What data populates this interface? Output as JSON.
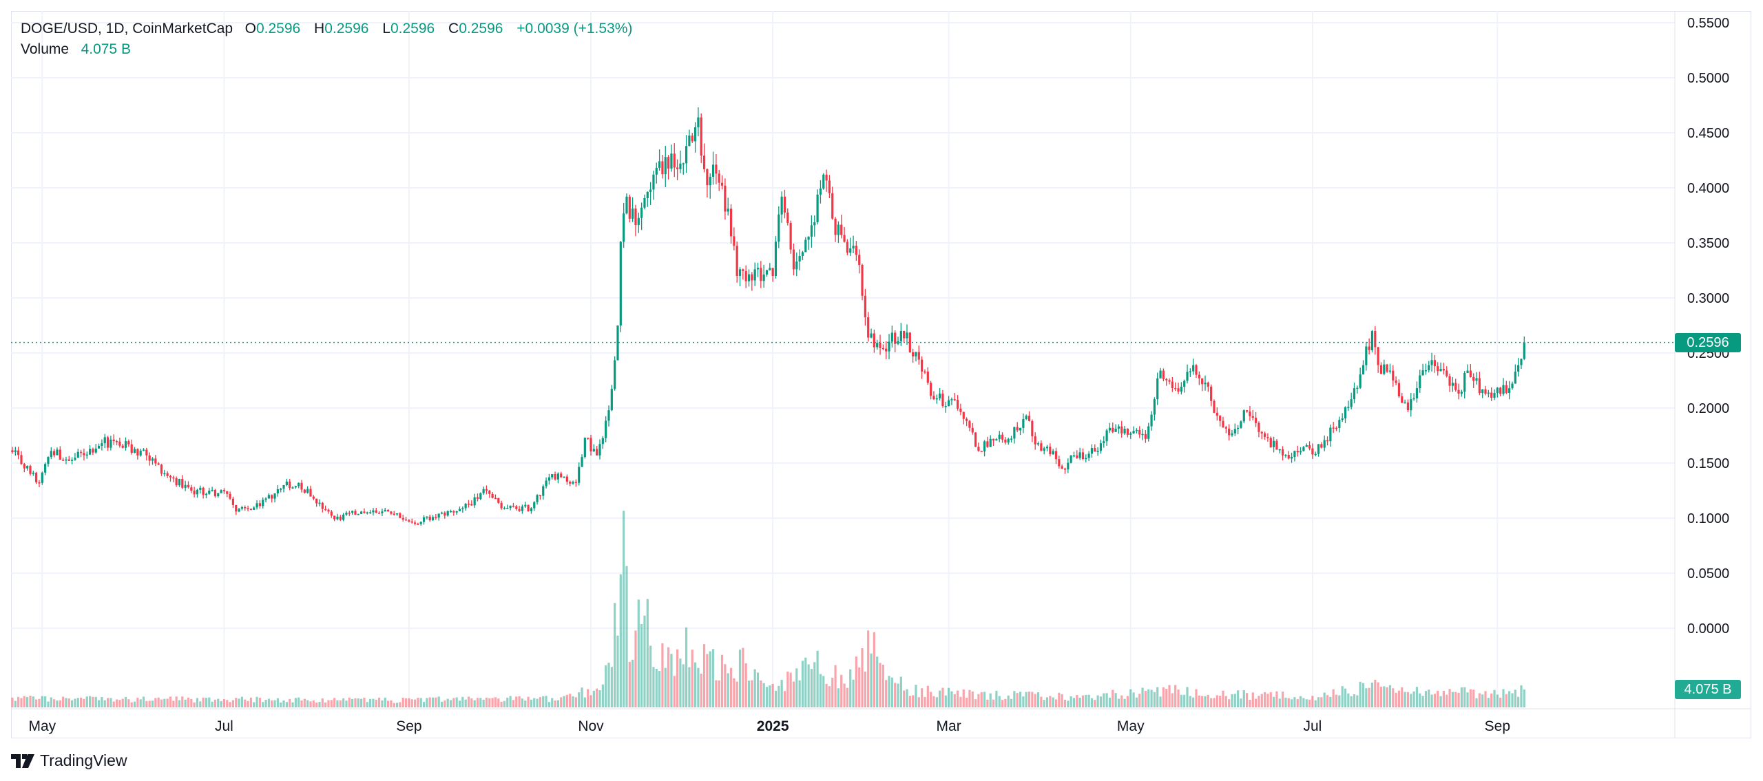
{
  "header": {
    "symbol": "DOGE/USD, 1D, CoinMarketCap",
    "o_label": "O",
    "o_value": "0.2596",
    "h_label": "H",
    "h_value": "0.2596",
    "l_label": "L",
    "l_value": "0.2596",
    "c_label": "C",
    "c_value": "0.2596",
    "change": "+0.0039 (+1.53%)",
    "volume_label": "Volume",
    "volume_value": "4.075 B"
  },
  "price_tag": "0.2596",
  "volume_tag": "4.075 B",
  "branding": "TradingView",
  "colors": {
    "up": "#089981",
    "down": "#f23645",
    "grid": "#f0f3fa",
    "tag": "#089981",
    "volume_tag": "#22ab94"
  },
  "chart_data": {
    "type": "candlestick",
    "title": "DOGE/USD, 1D, CoinMarketCap",
    "start_date": "2024-04-21",
    "candle_count": 508,
    "ylim": [
      0,
      0.55
    ],
    "y_ticks": [
      "0.5500",
      "0.5000",
      "0.4500",
      "0.4000",
      "0.3500",
      "0.3000",
      "0.2500",
      "0.2000",
      "0.1500",
      "0.1000",
      "0.0500",
      "0.0000"
    ],
    "y_tick_values": [
      0.55,
      0.5,
      0.45,
      0.4,
      0.35,
      0.3,
      0.25,
      0.2,
      0.15,
      0.1,
      0.05,
      0
    ],
    "x_ticks": [
      {
        "label": "May",
        "day": 10
      },
      {
        "label": "Jul",
        "day": 71
      },
      {
        "label": "Sep",
        "day": 133
      },
      {
        "label": "Nov",
        "day": 194
      },
      {
        "label": "2025",
        "day": 255
      },
      {
        "label": "Mar",
        "day": 314
      },
      {
        "label": "May",
        "day": 375
      },
      {
        "label": "Jul",
        "day": 436
      },
      {
        "label": "Sep",
        "day": 498
      }
    ],
    "last_price": 0.2596,
    "close_keyframes": [
      [
        0,
        0.16
      ],
      [
        9,
        0.132
      ],
      [
        13,
        0.161
      ],
      [
        19,
        0.152
      ],
      [
        30,
        0.168
      ],
      [
        34,
        0.17
      ],
      [
        45,
        0.157
      ],
      [
        53,
        0.137
      ],
      [
        60,
        0.125
      ],
      [
        72,
        0.122
      ],
      [
        75,
        0.106
      ],
      [
        83,
        0.111
      ],
      [
        91,
        0.13
      ],
      [
        96,
        0.132
      ],
      [
        106,
        0.106
      ],
      [
        108,
        0.099
      ],
      [
        117,
        0.106
      ],
      [
        126,
        0.106
      ],
      [
        134,
        0.096
      ],
      [
        141,
        0.101
      ],
      [
        151,
        0.109
      ],
      [
        159,
        0.125
      ],
      [
        164,
        0.109
      ],
      [
        174,
        0.109
      ],
      [
        181,
        0.14
      ],
      [
        189,
        0.132
      ],
      [
        192,
        0.173
      ],
      [
        196,
        0.157
      ],
      [
        200,
        0.198
      ],
      [
        203,
        0.275
      ],
      [
        204,
        0.351
      ],
      [
        206,
        0.392
      ],
      [
        207,
        0.372
      ],
      [
        211,
        0.382
      ],
      [
        215,
        0.412
      ],
      [
        219,
        0.428
      ],
      [
        223,
        0.417
      ],
      [
        226,
        0.438
      ],
      [
        230,
        0.464
      ],
      [
        232,
        0.417
      ],
      [
        238,
        0.402
      ],
      [
        241,
        0.356
      ],
      [
        243,
        0.32
      ],
      [
        249,
        0.326
      ],
      [
        255,
        0.32
      ],
      [
        258,
        0.392
      ],
      [
        262,
        0.326
      ],
      [
        268,
        0.366
      ],
      [
        272,
        0.412
      ],
      [
        275,
        0.372
      ],
      [
        279,
        0.351
      ],
      [
        284,
        0.33
      ],
      [
        287,
        0.264
      ],
      [
        292,
        0.254
      ],
      [
        298,
        0.27
      ],
      [
        304,
        0.244
      ],
      [
        309,
        0.208
      ],
      [
        315,
        0.208
      ],
      [
        321,
        0.182
      ],
      [
        324,
        0.161
      ],
      [
        328,
        0.172
      ],
      [
        334,
        0.172
      ],
      [
        340,
        0.193
      ],
      [
        343,
        0.167
      ],
      [
        349,
        0.161
      ],
      [
        352,
        0.145
      ],
      [
        356,
        0.157
      ],
      [
        364,
        0.161
      ],
      [
        368,
        0.182
      ],
      [
        375,
        0.177
      ],
      [
        380,
        0.172
      ],
      [
        385,
        0.234
      ],
      [
        390,
        0.218
      ],
      [
        396,
        0.239
      ],
      [
        400,
        0.223
      ],
      [
        404,
        0.193
      ],
      [
        409,
        0.177
      ],
      [
        413,
        0.198
      ],
      [
        419,
        0.177
      ],
      [
        426,
        0.157
      ],
      [
        432,
        0.161
      ],
      [
        439,
        0.164
      ],
      [
        443,
        0.182
      ],
      [
        449,
        0.208
      ],
      [
        453,
        0.239
      ],
      [
        456,
        0.27
      ],
      [
        458,
        0.239
      ],
      [
        462,
        0.234
      ],
      [
        468,
        0.198
      ],
      [
        471,
        0.218
      ],
      [
        475,
        0.239
      ],
      [
        481,
        0.229
      ],
      [
        485,
        0.213
      ],
      [
        488,
        0.234
      ],
      [
        494,
        0.213
      ],
      [
        502,
        0.218
      ],
      [
        505,
        0.239
      ],
      [
        507,
        0.2596
      ]
    ],
    "volume_unit": "B",
    "volume_keyframes": [
      [
        0,
        2.0
      ],
      [
        60,
        1.8
      ],
      [
        120,
        1.6
      ],
      [
        180,
        2.0
      ],
      [
        196,
        4.0
      ],
      [
        200,
        10
      ],
      [
        203,
        25
      ],
      [
        205,
        39
      ],
      [
        207,
        15
      ],
      [
        212,
        22
      ],
      [
        215,
        12
      ],
      [
        220,
        10
      ],
      [
        225,
        14
      ],
      [
        230,
        12
      ],
      [
        240,
        8
      ],
      [
        245,
        10
      ],
      [
        255,
        4
      ],
      [
        270,
        10
      ],
      [
        280,
        5
      ],
      [
        287,
        14
      ],
      [
        300,
        4
      ],
      [
        320,
        3
      ],
      [
        360,
        2.2
      ],
      [
        385,
        4
      ],
      [
        400,
        3
      ],
      [
        440,
        2.5
      ],
      [
        455,
        5
      ],
      [
        470,
        4
      ],
      [
        500,
        3
      ],
      [
        507,
        4.075
      ]
    ]
  }
}
